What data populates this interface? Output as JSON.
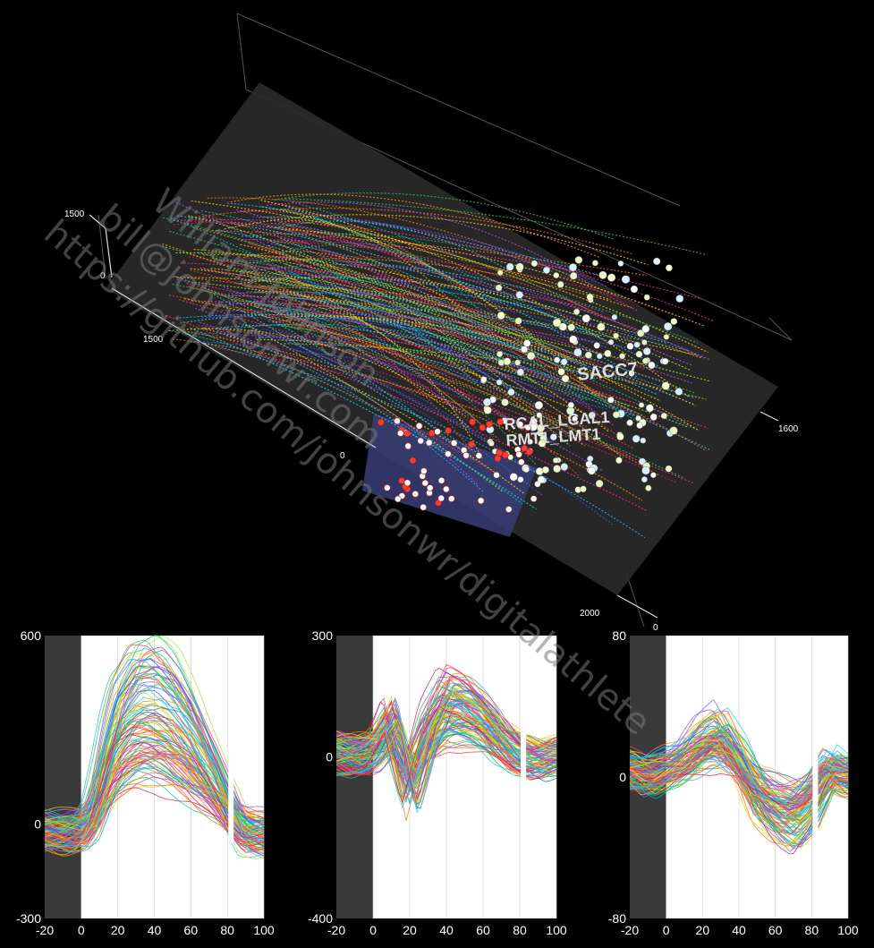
{
  "view3d": {
    "tick_labels": [
      "1500",
      "0",
      "1500",
      "0",
      "1600",
      "2000",
      "0"
    ],
    "marker_labels": [
      "SACC7",
      "RCAL_LCAL1",
      "RMT1_LMT1"
    ]
  },
  "watermark": {
    "lines": [
      "William Johnson",
      "bill@johnsonwr.com",
      "https://github.com/johnsonwr/digitalathlete"
    ]
  },
  "chart_data": [
    {
      "type": "line",
      "xlim": [
        -20,
        100
      ],
      "ylim": [
        -300,
        600
      ],
      "x_ticks": [
        "-20",
        "0",
        "20",
        "40",
        "60",
        "80",
        "100"
      ],
      "y_ticks": [
        "600",
        "0",
        "-300"
      ],
      "shaded_x": [
        -20,
        0
      ],
      "dot_x": 82,
      "dot_range": [
        -50,
        190
      ],
      "envelope": {
        "x": [
          -20,
          -10,
          0,
          5,
          10,
          15,
          20,
          30,
          40,
          50,
          60,
          70,
          80,
          85,
          90,
          100
        ],
        "y": [
          -25,
          -35,
          -20,
          20,
          120,
          240,
          330,
          410,
          420,
          380,
          300,
          190,
          70,
          10,
          -30,
          -40
        ]
      }
    },
    {
      "type": "line",
      "xlim": [
        -20,
        100
      ],
      "ylim": [
        -400,
        300
      ],
      "x_ticks": [
        "-20",
        "0",
        "20",
        "40",
        "60",
        "80",
        "100"
      ],
      "y_ticks": [
        "300",
        "0",
        "-400"
      ],
      "shaded_x": [
        -20,
        0
      ],
      "dot_x": 82,
      "dot_range": [
        -120,
        110
      ],
      "envelope": {
        "x": [
          -20,
          -10,
          0,
          5,
          10,
          15,
          20,
          30,
          40,
          50,
          60,
          70,
          80,
          90,
          100
        ],
        "y": [
          10,
          0,
          15,
          50,
          90,
          0,
          -80,
          60,
          140,
          130,
          90,
          40,
          5,
          -10,
          0
        ]
      }
    },
    {
      "type": "line",
      "xlim": [
        -20,
        100
      ],
      "ylim": [
        -80,
        80
      ],
      "x_ticks": [
        "-20",
        "0",
        "20",
        "40",
        "60",
        "80",
        "100"
      ],
      "y_ticks": [
        "80",
        "0",
        "-80"
      ],
      "shaded_x": [
        -20,
        0
      ],
      "dot_x": 82,
      "dot_range": [
        -55,
        25
      ],
      "envelope": {
        "x": [
          -20,
          -10,
          0,
          10,
          20,
          30,
          40,
          50,
          60,
          70,
          80,
          90,
          100
        ],
        "y": [
          5,
          0,
          5,
          10,
          20,
          25,
          10,
          -10,
          -20,
          -25,
          -15,
          5,
          0
        ]
      }
    }
  ]
}
